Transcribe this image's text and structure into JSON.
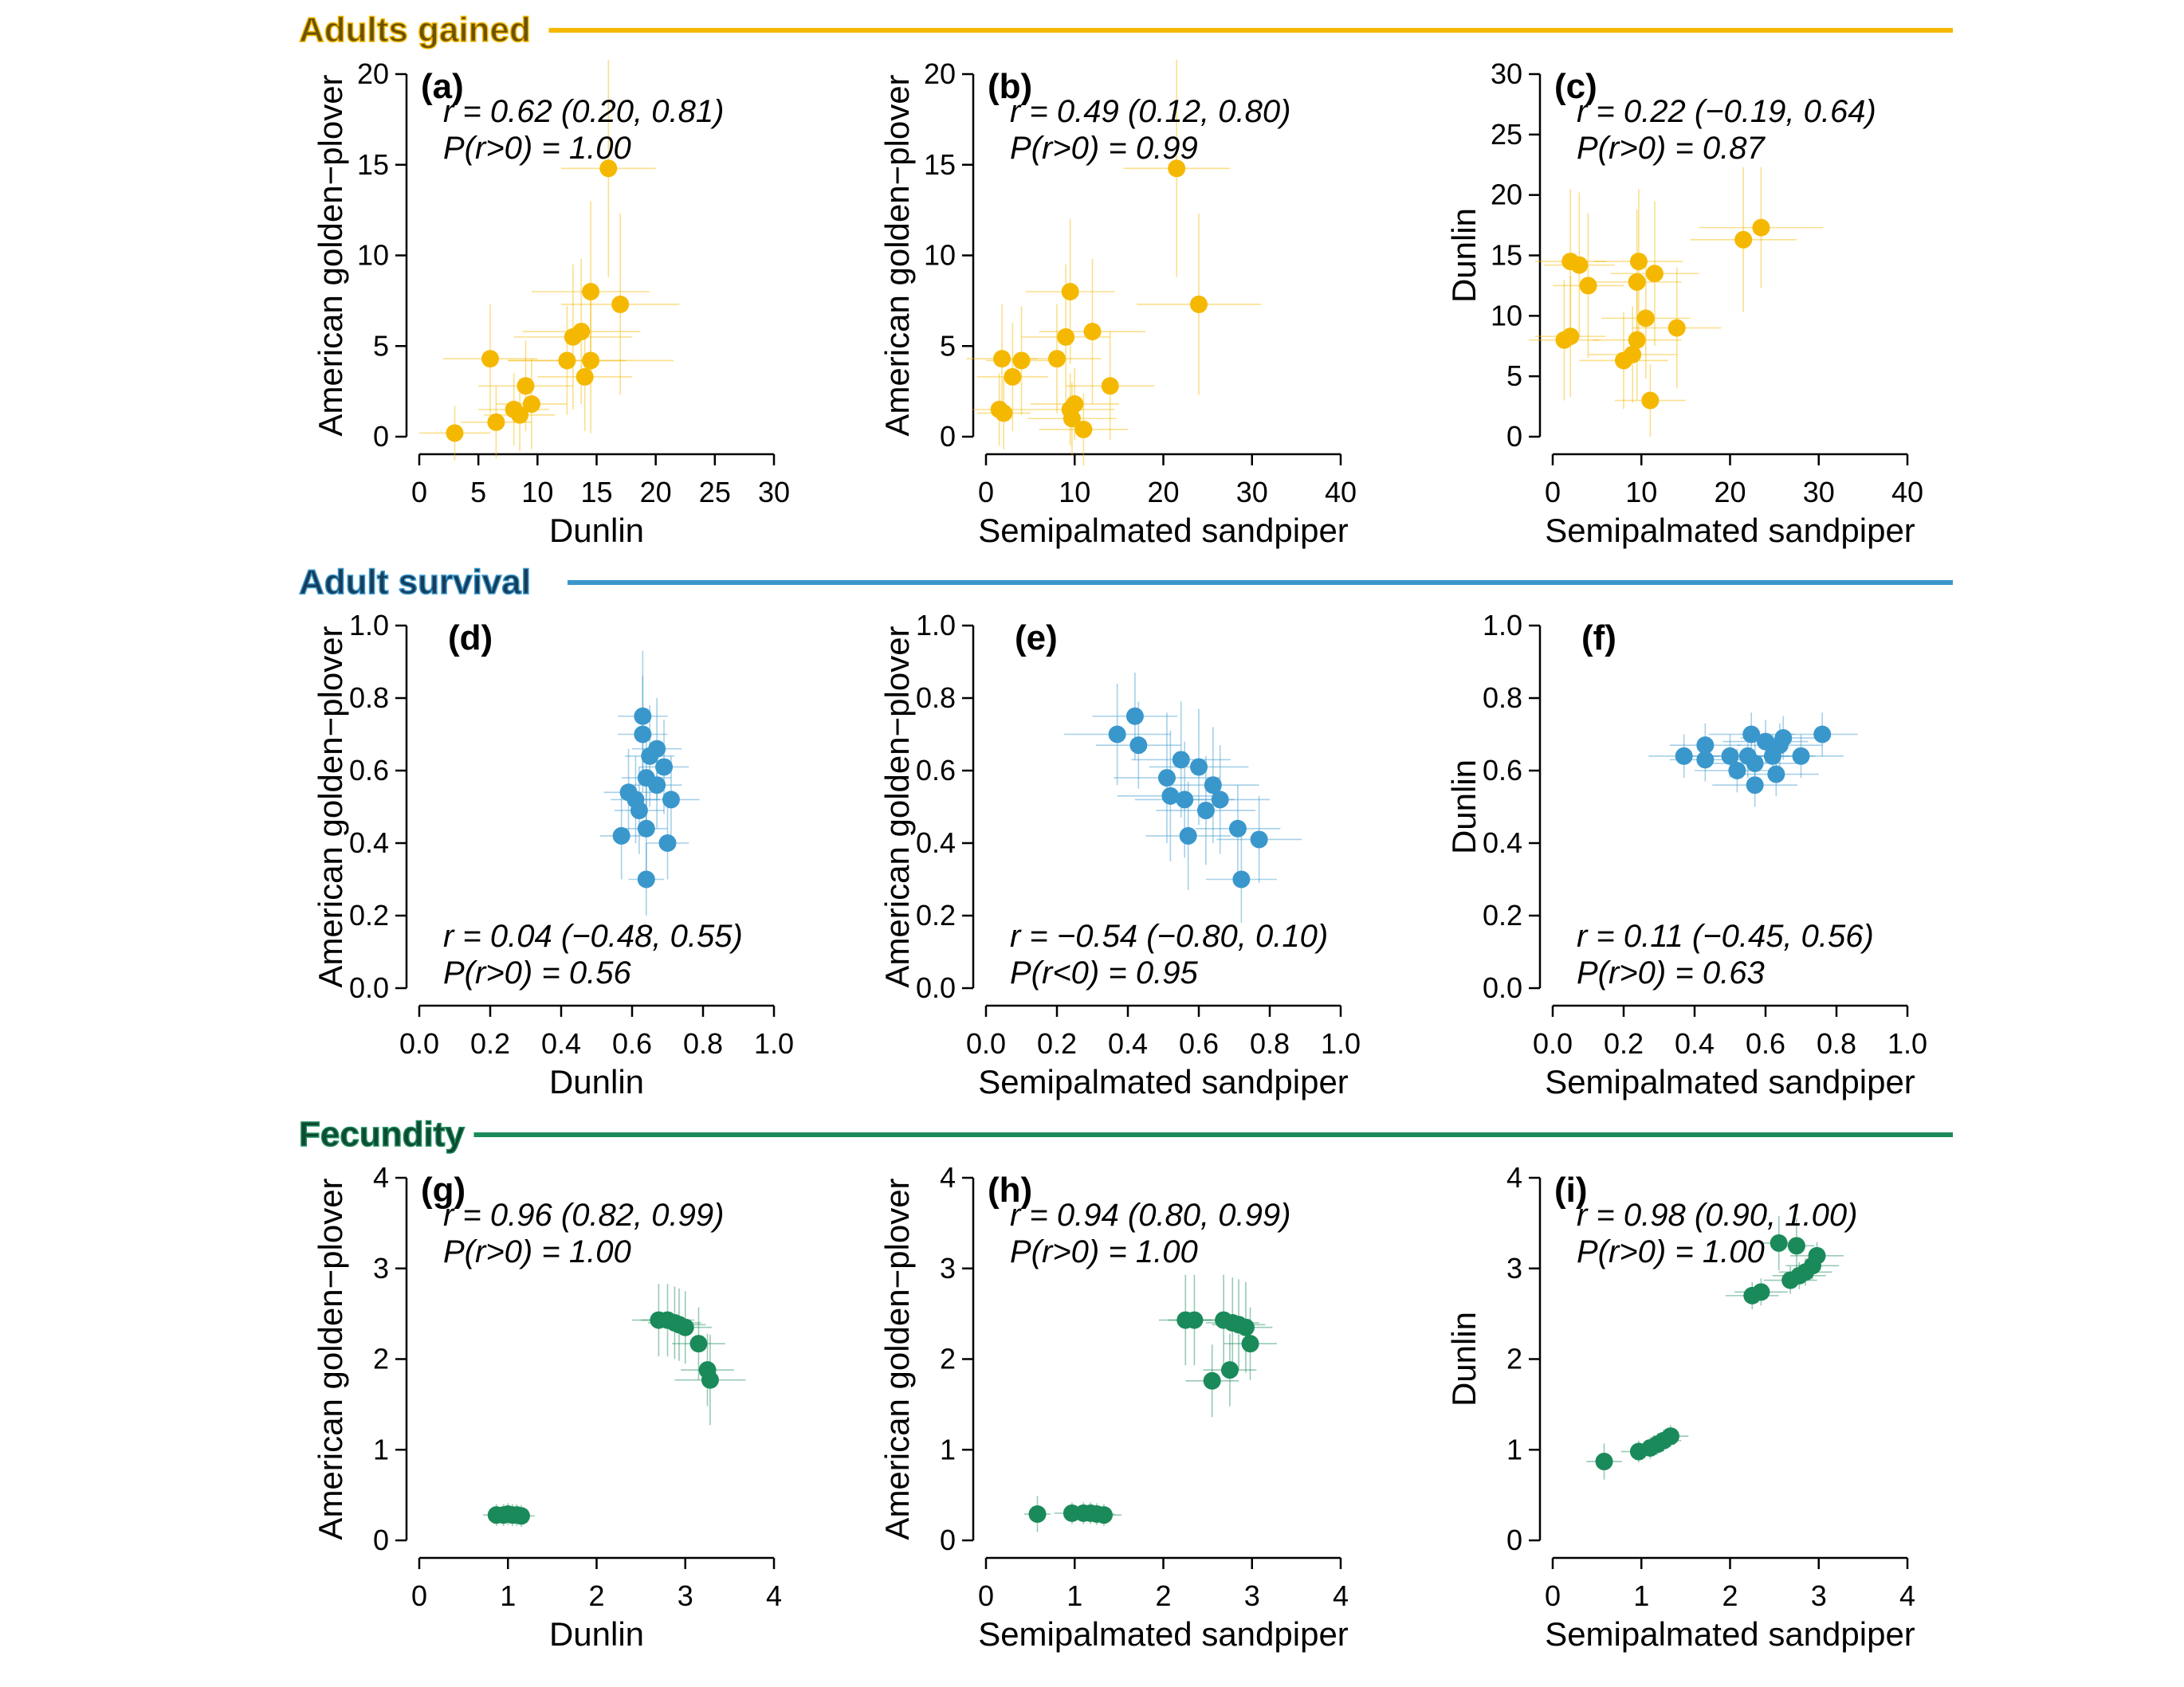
{
  "sections": [
    {
      "title": "Adults gained",
      "color": "#f5b800",
      "title_color": "#6b5200"
    },
    {
      "title": "Adult survival",
      "color": "#3a97cc",
      "title_color": "#173d5a"
    },
    {
      "title": "Fecundity",
      "color": "#1b8a5a",
      "title_color": "#0f4a31"
    }
  ],
  "chart_data": [
    {
      "panel": "(a)",
      "type": "scatter",
      "section": 0,
      "color": "#f5b800",
      "xlabel": "Dunlin",
      "ylabel": "American golden−plover",
      "xlim": [
        0,
        30
      ],
      "ylim": [
        0,
        20
      ],
      "xticks": [
        "0",
        "5",
        "10",
        "15",
        "20",
        "25",
        "30"
      ],
      "yticks": [
        "0",
        "5",
        "10",
        "15",
        "20"
      ],
      "stat1": "r = 0.62 (0.20, 0.81)",
      "stat2": "P(r>0) = 1.00",
      "stat_pos": "top",
      "points": [
        {
          "x": 3,
          "y": 0.2,
          "xe": 3,
          "ye": 1.5
        },
        {
          "x": 6.5,
          "y": 0.8,
          "xe": 3,
          "ye": 2
        },
        {
          "x": 8,
          "y": 1.5,
          "xe": 3,
          "ye": 2
        },
        {
          "x": 8.5,
          "y": 1.2,
          "xe": 3,
          "ye": 2
        },
        {
          "x": 9.5,
          "y": 1.8,
          "xe": 3,
          "ye": 2.5
        },
        {
          "x": 9,
          "y": 2.8,
          "xe": 4,
          "ye": 2.5
        },
        {
          "x": 6,
          "y": 4.3,
          "xe": 4,
          "ye": 3
        },
        {
          "x": 12.5,
          "y": 4.2,
          "xe": 5,
          "ye": 3
        },
        {
          "x": 14.5,
          "y": 4.2,
          "xe": 7,
          "ye": 4
        },
        {
          "x": 14,
          "y": 3.3,
          "xe": 4,
          "ye": 3
        },
        {
          "x": 13,
          "y": 5.5,
          "xe": 5,
          "ye": 4
        },
        {
          "x": 13.7,
          "y": 5.8,
          "xe": 5,
          "ye": 4
        },
        {
          "x": 14.5,
          "y": 8,
          "xe": 5,
          "ye": 5
        },
        {
          "x": 17,
          "y": 7.3,
          "xe": 5,
          "ye": 5
        },
        {
          "x": 16,
          "y": 14.8,
          "xe": 4,
          "ye": 6
        }
      ]
    },
    {
      "panel": "(b)",
      "type": "scatter",
      "section": 0,
      "color": "#f5b800",
      "xlabel": "Semipalmated sandpiper",
      "ylabel": "American golden−plover",
      "xlim": [
        0,
        40
      ],
      "ylim": [
        0,
        20
      ],
      "xticks": [
        "0",
        "10",
        "20",
        "30",
        "40"
      ],
      "yticks": [
        "0",
        "5",
        "10",
        "15",
        "20"
      ],
      "stat1": "r = 0.49 (0.12, 0.80)",
      "stat2": "P(r>0) = 0.99",
      "stat_pos": "top",
      "points": [
        {
          "x": 1.5,
          "y": 1.5,
          "xe": 3,
          "ye": 2
        },
        {
          "x": 2,
          "y": 1.3,
          "xe": 3,
          "ye": 2
        },
        {
          "x": 1.8,
          "y": 4.3,
          "xe": 4,
          "ye": 3
        },
        {
          "x": 3,
          "y": 3.3,
          "xe": 4,
          "ye": 3
        },
        {
          "x": 4,
          "y": 4.2,
          "xe": 4,
          "ye": 3
        },
        {
          "x": 8,
          "y": 4.3,
          "xe": 5,
          "ye": 3
        },
        {
          "x": 9,
          "y": 5.5,
          "xe": 5,
          "ye": 4
        },
        {
          "x": 9.5,
          "y": 8,
          "xe": 5,
          "ye": 4
        },
        {
          "x": 9.5,
          "y": 1.5,
          "xe": 5,
          "ye": 2
        },
        {
          "x": 10,
          "y": 1.8,
          "xe": 5,
          "ye": 2
        },
        {
          "x": 9.7,
          "y": 1,
          "xe": 5,
          "ye": 2
        },
        {
          "x": 11,
          "y": 0.4,
          "xe": 5,
          "ye": 2
        },
        {
          "x": 12,
          "y": 5.8,
          "xe": 6,
          "ye": 4
        },
        {
          "x": 14,
          "y": 2.8,
          "xe": 5,
          "ye": 3
        },
        {
          "x": 24,
          "y": 7.3,
          "xe": 7,
          "ye": 5
        },
        {
          "x": 21.5,
          "y": 14.8,
          "xe": 6,
          "ye": 6
        }
      ]
    },
    {
      "panel": "(c)",
      "type": "scatter",
      "section": 0,
      "color": "#f5b800",
      "xlabel": "Semipalmated sandpiper",
      "ylabel": "Dunlin",
      "xlim": [
        0,
        40
      ],
      "ylim": [
        0,
        30
      ],
      "xticks": [
        "0",
        "10",
        "20",
        "30",
        "40"
      ],
      "yticks": [
        "0",
        "5",
        "10",
        "15",
        "20",
        "25",
        "30"
      ],
      "stat1": "r = 0.22 (−0.19, 0.64)",
      "stat2": "P(r>0) = 0.87",
      "stat_pos": "top",
      "points": [
        {
          "x": 1.3,
          "y": 8,
          "xe": 4,
          "ye": 5
        },
        {
          "x": 2,
          "y": 8.3,
          "xe": 4,
          "ye": 5
        },
        {
          "x": 2,
          "y": 14.5,
          "xe": 4,
          "ye": 6
        },
        {
          "x": 3,
          "y": 14.2,
          "xe": 4,
          "ye": 6
        },
        {
          "x": 4,
          "y": 12.5,
          "xe": 4,
          "ye": 6
        },
        {
          "x": 8,
          "y": 6.3,
          "xe": 5,
          "ye": 4
        },
        {
          "x": 9,
          "y": 6.8,
          "xe": 5,
          "ye": 4
        },
        {
          "x": 9.5,
          "y": 8,
          "xe": 5,
          "ye": 5
        },
        {
          "x": 9.5,
          "y": 12.8,
          "xe": 5,
          "ye": 6
        },
        {
          "x": 9.7,
          "y": 14.5,
          "xe": 5,
          "ye": 6
        },
        {
          "x": 10.5,
          "y": 9.8,
          "xe": 5,
          "ye": 5
        },
        {
          "x": 11,
          "y": 3,
          "xe": 4,
          "ye": 3
        },
        {
          "x": 11.5,
          "y": 13.5,
          "xe": 5,
          "ye": 6
        },
        {
          "x": 14,
          "y": 9,
          "xe": 5,
          "ye": 5
        },
        {
          "x": 21.5,
          "y": 16.3,
          "xe": 6,
          "ye": 6
        },
        {
          "x": 23.5,
          "y": 17.3,
          "xe": 7,
          "ye": 5
        }
      ]
    },
    {
      "panel": "(d)",
      "type": "scatter",
      "section": 1,
      "color": "#3a97cc",
      "xlabel": "Dunlin",
      "ylabel": "American golden−plover",
      "xlim": [
        0,
        1
      ],
      "ylim": [
        0,
        1
      ],
      "xticks": [
        "0.0",
        "0.2",
        "0.4",
        "0.6",
        "0.8",
        "1.0"
      ],
      "yticks": [
        "0.0",
        "0.2",
        "0.4",
        "0.6",
        "0.8",
        "1.0"
      ],
      "stat1": "r = 0.04 (−0.48, 0.55)",
      "stat2": "P(r>0) = 0.56",
      "stat_pos": "bottom",
      "points": [
        {
          "x": 0.57,
          "y": 0.42,
          "xe": 0.06,
          "ye": 0.12
        },
        {
          "x": 0.59,
          "y": 0.54,
          "xe": 0.07,
          "ye": 0.12
        },
        {
          "x": 0.61,
          "y": 0.52,
          "xe": 0.07,
          "ye": 0.12
        },
        {
          "x": 0.62,
          "y": 0.49,
          "xe": 0.07,
          "ye": 0.12
        },
        {
          "x": 0.64,
          "y": 0.3,
          "xe": 0.05,
          "ye": 0.1
        },
        {
          "x": 0.64,
          "y": 0.44,
          "xe": 0.06,
          "ye": 0.12
        },
        {
          "x": 0.64,
          "y": 0.58,
          "xe": 0.07,
          "ye": 0.14
        },
        {
          "x": 0.65,
          "y": 0.64,
          "xe": 0.07,
          "ye": 0.14
        },
        {
          "x": 0.63,
          "y": 0.7,
          "xe": 0.07,
          "ye": 0.16
        },
        {
          "x": 0.63,
          "y": 0.75,
          "xe": 0.07,
          "ye": 0.18
        },
        {
          "x": 0.67,
          "y": 0.66,
          "xe": 0.07,
          "ye": 0.14
        },
        {
          "x": 0.67,
          "y": 0.56,
          "xe": 0.07,
          "ye": 0.12
        },
        {
          "x": 0.69,
          "y": 0.61,
          "xe": 0.07,
          "ye": 0.13
        },
        {
          "x": 0.71,
          "y": 0.52,
          "xe": 0.08,
          "ye": 0.12
        },
        {
          "x": 0.7,
          "y": 0.4,
          "xe": 0.06,
          "ye": 0.1
        }
      ]
    },
    {
      "panel": "(e)",
      "type": "scatter",
      "section": 1,
      "color": "#3a97cc",
      "xlabel": "Semipalmated sandpiper",
      "ylabel": "American golden−plover",
      "xlim": [
        0,
        1
      ],
      "ylim": [
        0,
        1
      ],
      "xticks": [
        "0.0",
        "0.2",
        "0.4",
        "0.6",
        "0.8",
        "1.0"
      ],
      "yticks": [
        "0.0",
        "0.2",
        "0.4",
        "0.6",
        "0.8",
        "1.0"
      ],
      "stat1": "r = −0.54 (−0.80, 0.10)",
      "stat2": "P(r<0) = 0.95",
      "stat_pos": "bottom",
      "points": [
        {
          "x": 0.37,
          "y": 0.7,
          "xe": 0.15,
          "ye": 0.14
        },
        {
          "x": 0.42,
          "y": 0.75,
          "xe": 0.12,
          "ye": 0.12
        },
        {
          "x": 0.43,
          "y": 0.67,
          "xe": 0.12,
          "ye": 0.12
        },
        {
          "x": 0.51,
          "y": 0.58,
          "xe": 0.15,
          "ye": 0.18
        },
        {
          "x": 0.52,
          "y": 0.53,
          "xe": 0.15,
          "ye": 0.18
        },
        {
          "x": 0.55,
          "y": 0.63,
          "xe": 0.14,
          "ye": 0.16
        },
        {
          "x": 0.56,
          "y": 0.52,
          "xe": 0.14,
          "ye": 0.16
        },
        {
          "x": 0.57,
          "y": 0.42,
          "xe": 0.12,
          "ye": 0.15
        },
        {
          "x": 0.6,
          "y": 0.61,
          "xe": 0.14,
          "ye": 0.16
        },
        {
          "x": 0.62,
          "y": 0.49,
          "xe": 0.14,
          "ye": 0.15
        },
        {
          "x": 0.64,
          "y": 0.56,
          "xe": 0.13,
          "ye": 0.16
        },
        {
          "x": 0.66,
          "y": 0.52,
          "xe": 0.14,
          "ye": 0.15
        },
        {
          "x": 0.71,
          "y": 0.44,
          "xe": 0.12,
          "ye": 0.12
        },
        {
          "x": 0.72,
          "y": 0.3,
          "xe": 0.1,
          "ye": 0.12
        },
        {
          "x": 0.77,
          "y": 0.41,
          "xe": 0.12,
          "ye": 0.12
        }
      ]
    },
    {
      "panel": "(f)",
      "type": "scatter",
      "section": 1,
      "color": "#3a97cc",
      "xlabel": "Semipalmated sandpiper",
      "ylabel": "Dunlin",
      "xlim": [
        0,
        1
      ],
      "ylim": [
        0,
        1
      ],
      "xticks": [
        "0.0",
        "0.2",
        "0.4",
        "0.6",
        "0.8",
        "1.0"
      ],
      "yticks": [
        "0.0",
        "0.2",
        "0.4",
        "0.6",
        "0.8",
        "1.0"
      ],
      "stat1": "r = 0.11 (−0.45, 0.56)",
      "stat2": "P(r>0) = 0.63",
      "stat_pos": "bottom",
      "points": [
        {
          "x": 0.37,
          "y": 0.64,
          "xe": 0.1,
          "ye": 0.06
        },
        {
          "x": 0.43,
          "y": 0.67,
          "xe": 0.1,
          "ye": 0.06
        },
        {
          "x": 0.43,
          "y": 0.63,
          "xe": 0.1,
          "ye": 0.06
        },
        {
          "x": 0.5,
          "y": 0.64,
          "xe": 0.12,
          "ye": 0.06
        },
        {
          "x": 0.52,
          "y": 0.6,
          "xe": 0.12,
          "ye": 0.06
        },
        {
          "x": 0.55,
          "y": 0.64,
          "xe": 0.12,
          "ye": 0.06
        },
        {
          "x": 0.56,
          "y": 0.7,
          "xe": 0.12,
          "ye": 0.06
        },
        {
          "x": 0.57,
          "y": 0.62,
          "xe": 0.12,
          "ye": 0.06
        },
        {
          "x": 0.57,
          "y": 0.56,
          "xe": 0.12,
          "ye": 0.06
        },
        {
          "x": 0.6,
          "y": 0.68,
          "xe": 0.12,
          "ye": 0.06
        },
        {
          "x": 0.62,
          "y": 0.64,
          "xe": 0.12,
          "ye": 0.06
        },
        {
          "x": 0.63,
          "y": 0.59,
          "xe": 0.12,
          "ye": 0.06
        },
        {
          "x": 0.64,
          "y": 0.67,
          "xe": 0.12,
          "ye": 0.06
        },
        {
          "x": 0.65,
          "y": 0.69,
          "xe": 0.12,
          "ye": 0.06
        },
        {
          "x": 0.7,
          "y": 0.64,
          "xe": 0.12,
          "ye": 0.06
        },
        {
          "x": 0.76,
          "y": 0.7,
          "xe": 0.1,
          "ye": 0.06
        }
      ]
    },
    {
      "panel": "(g)",
      "type": "scatter",
      "section": 2,
      "color": "#1b8a5a",
      "xlabel": "Dunlin",
      "ylabel": "American golden−plover",
      "xlim": [
        0,
        4
      ],
      "ylim": [
        0,
        4
      ],
      "xticks": [
        "0",
        "1",
        "2",
        "3",
        "4"
      ],
      "yticks": [
        "0",
        "1",
        "2",
        "3",
        "4"
      ],
      "stat1": "r = 0.96 (0.82, 0.99)",
      "stat2": "P(r>0) = 1.00",
      "stat_pos": "top",
      "points": [
        {
          "x": 0.87,
          "y": 0.28,
          "xe": 0.15,
          "ye": 0.12
        },
        {
          "x": 0.95,
          "y": 0.28,
          "xe": 0.15,
          "ye": 0.12
        },
        {
          "x": 1.0,
          "y": 0.29,
          "xe": 0.15,
          "ye": 0.12
        },
        {
          "x": 1.05,
          "y": 0.28,
          "xe": 0.15,
          "ye": 0.12
        },
        {
          "x": 1.1,
          "y": 0.28,
          "xe": 0.15,
          "ye": 0.12
        },
        {
          "x": 1.15,
          "y": 0.27,
          "xe": 0.15,
          "ye": 0.12
        },
        {
          "x": 2.7,
          "y": 2.43,
          "xe": 0.3,
          "ye": 0.4
        },
        {
          "x": 2.8,
          "y": 2.43,
          "xe": 0.3,
          "ye": 0.4
        },
        {
          "x": 2.88,
          "y": 2.4,
          "xe": 0.3,
          "ye": 0.4
        },
        {
          "x": 2.93,
          "y": 2.38,
          "xe": 0.3,
          "ye": 0.4
        },
        {
          "x": 3.0,
          "y": 2.35,
          "xe": 0.3,
          "ye": 0.4
        },
        {
          "x": 3.15,
          "y": 2.17,
          "xe": 0.3,
          "ye": 0.4
        },
        {
          "x": 3.25,
          "y": 1.88,
          "xe": 0.3,
          "ye": 0.4
        },
        {
          "x": 3.28,
          "y": 1.77,
          "xe": 0.4,
          "ye": 0.5
        }
      ]
    },
    {
      "panel": "(h)",
      "type": "scatter",
      "section": 2,
      "color": "#1b8a5a",
      "xlabel": "Semipalmated sandpiper",
      "ylabel": "American golden−plover",
      "xlim": [
        0,
        4
      ],
      "ylim": [
        0,
        4
      ],
      "xticks": [
        "0",
        "1",
        "2",
        "3",
        "4"
      ],
      "yticks": [
        "0",
        "1",
        "2",
        "3",
        "4"
      ],
      "stat1": "r = 0.94 (0.80, 0.99)",
      "stat2": "P(r>0) = 1.00",
      "stat_pos": "top",
      "points": [
        {
          "x": 0.58,
          "y": 0.29,
          "xe": 0.15,
          "ye": 0.2
        },
        {
          "x": 0.97,
          "y": 0.3,
          "xe": 0.2,
          "ye": 0.12
        },
        {
          "x": 1.1,
          "y": 0.3,
          "xe": 0.2,
          "ye": 0.12
        },
        {
          "x": 1.18,
          "y": 0.3,
          "xe": 0.2,
          "ye": 0.12
        },
        {
          "x": 1.25,
          "y": 0.29,
          "xe": 0.2,
          "ye": 0.12
        },
        {
          "x": 1.33,
          "y": 0.28,
          "xe": 0.2,
          "ye": 0.12
        },
        {
          "x": 2.25,
          "y": 2.43,
          "xe": 0.3,
          "ye": 0.5
        },
        {
          "x": 2.35,
          "y": 2.43,
          "xe": 0.3,
          "ye": 0.5
        },
        {
          "x": 2.55,
          "y": 1.76,
          "xe": 0.3,
          "ye": 0.4
        },
        {
          "x": 2.68,
          "y": 2.43,
          "xe": 0.3,
          "ye": 0.5
        },
        {
          "x": 2.75,
          "y": 1.88,
          "xe": 0.3,
          "ye": 0.4
        },
        {
          "x": 2.78,
          "y": 2.4,
          "xe": 0.3,
          "ye": 0.5
        },
        {
          "x": 2.85,
          "y": 2.38,
          "xe": 0.3,
          "ye": 0.5
        },
        {
          "x": 2.93,
          "y": 2.35,
          "xe": 0.3,
          "ye": 0.5
        },
        {
          "x": 2.98,
          "y": 2.17,
          "xe": 0.3,
          "ye": 0.4
        }
      ]
    },
    {
      "panel": "(i)",
      "type": "scatter",
      "section": 2,
      "color": "#1b8a5a",
      "xlabel": "Semipalmated sandpiper",
      "ylabel": "Dunlin",
      "xlim": [
        0,
        4
      ],
      "ylim": [
        0,
        4
      ],
      "xticks": [
        "0",
        "1",
        "2",
        "3",
        "4"
      ],
      "yticks": [
        "0",
        "1",
        "2",
        "3",
        "4"
      ],
      "stat1": "r = 0.98 (0.90, 1.00)",
      "stat2": "P(r>0) = 1.00",
      "stat_pos": "top",
      "points": [
        {
          "x": 0.58,
          "y": 0.87,
          "xe": 0.2,
          "ye": 0.2
        },
        {
          "x": 0.97,
          "y": 0.98,
          "xe": 0.2,
          "ye": 0.12
        },
        {
          "x": 1.1,
          "y": 1.02,
          "xe": 0.2,
          "ye": 0.12
        },
        {
          "x": 1.18,
          "y": 1.06,
          "xe": 0.2,
          "ye": 0.12
        },
        {
          "x": 1.25,
          "y": 1.1,
          "xe": 0.2,
          "ye": 0.12
        },
        {
          "x": 1.33,
          "y": 1.15,
          "xe": 0.2,
          "ye": 0.12
        },
        {
          "x": 2.25,
          "y": 2.7,
          "xe": 0.3,
          "ye": 0.15
        },
        {
          "x": 2.35,
          "y": 2.74,
          "xe": 0.3,
          "ye": 0.15
        },
        {
          "x": 2.55,
          "y": 3.28,
          "xe": 0.2,
          "ye": 0.3
        },
        {
          "x": 2.68,
          "y": 2.87,
          "xe": 0.3,
          "ye": 0.15
        },
        {
          "x": 2.75,
          "y": 3.25,
          "xe": 0.2,
          "ye": 0.3
        },
        {
          "x": 2.78,
          "y": 2.92,
          "xe": 0.3,
          "ye": 0.15
        },
        {
          "x": 2.85,
          "y": 2.96,
          "xe": 0.3,
          "ye": 0.15
        },
        {
          "x": 2.93,
          "y": 3.03,
          "xe": 0.3,
          "ye": 0.15
        },
        {
          "x": 2.98,
          "y": 3.14,
          "xe": 0.3,
          "ye": 0.15
        }
      ]
    }
  ]
}
